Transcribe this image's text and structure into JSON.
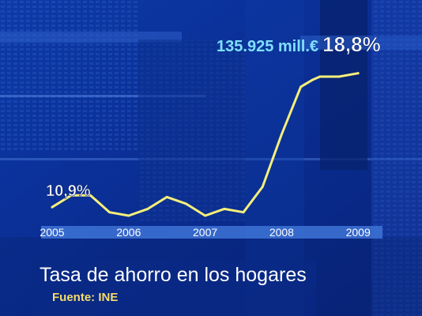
{
  "colors": {
    "background": "#0a2a8a",
    "line": "#f6ef7a",
    "amount_text": "#7fe0ff",
    "label_text": "#ffffff",
    "axis_band": "#3e73d6",
    "year_text": "#ffffff",
    "source_text": "#f4dc6a"
  },
  "chart_data": {
    "type": "line",
    "title": "Tasa de ahorro en los hogares",
    "source": "Fuente: INE",
    "x_axis": {
      "tick_labels": [
        "2005",
        "2006",
        "2007",
        "2008",
        "2009"
      ],
      "range": [
        2005,
        2009.05
      ]
    },
    "y_range": [
      9,
      20
    ],
    "grid": false,
    "series": [
      {
        "x": [
          2005.0,
          2005.25,
          2005.5,
          2005.75,
          2006.0,
          2006.25,
          2006.5,
          2006.75,
          2007.0,
          2007.25,
          2007.5,
          2007.75,
          2008.0,
          2008.25,
          2008.4,
          2008.5,
          2008.6,
          2008.75,
          2009.0
        ],
        "y": [
          10.9,
          11.6,
          11.6,
          10.6,
          10.4,
          10.8,
          11.5,
          11.1,
          10.4,
          10.8,
          10.6,
          12.1,
          15.2,
          18.0,
          18.4,
          18.6,
          18.6,
          18.6,
          18.8
        ],
        "values": [
          10.9,
          11.6,
          11.6,
          10.6,
          10.4,
          10.8,
          11.5,
          11.1,
          10.4,
          10.8,
          10.6,
          12.1,
          15.2,
          18.0,
          18.4,
          18.6,
          18.6,
          18.6,
          18.8
        ]
      }
    ],
    "annotations": {
      "start_label": "10,9%",
      "end_amount": "135.925 mill.€",
      "end_label": "18,8%"
    }
  }
}
